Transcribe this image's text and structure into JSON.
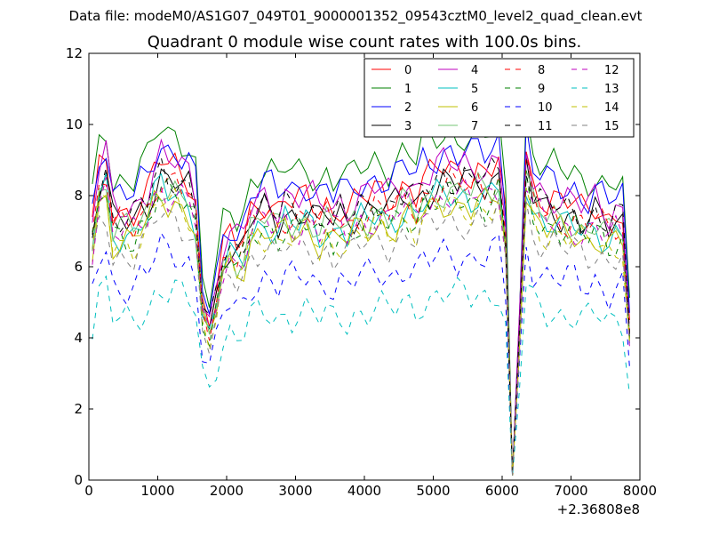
{
  "chart_data": {
    "type": "line",
    "suptitle": "Data file: modeM0/AS1G07_049T01_9000001352_09543cztM0_level2_quad_clean.evt",
    "title": "Quadrant 0 module wise count rates with 100.0s bins.",
    "xlabel": "",
    "ylabel": "",
    "x_offset_label": "+2.36808e8",
    "xlim": [
      0,
      8000
    ],
    "ylim": [
      0,
      12
    ],
    "xticks": [
      "0",
      "1000",
      "2000",
      "3000",
      "4000",
      "5000",
      "6000",
      "7000",
      "8000"
    ],
    "yticks": [
      "0",
      "2",
      "4",
      "6",
      "8",
      "10",
      "12"
    ],
    "grid": false,
    "legend_position": "top-right",
    "x": [
      50,
      150,
      250,
      350,
      450,
      550,
      650,
      750,
      850,
      950,
      1050,
      1150,
      1250,
      1350,
      1450,
      1550,
      1650,
      1750,
      1850,
      1950,
      2050,
      2150,
      2250,
      2350,
      2450,
      2550,
      2650,
      2750,
      2850,
      2950,
      3050,
      3150,
      3250,
      3350,
      3450,
      3550,
      3650,
      3750,
      3850,
      3950,
      4050,
      4150,
      4250,
      4350,
      4450,
      4550,
      4650,
      4750,
      4850,
      4950,
      5050,
      5150,
      5250,
      5350,
      5450,
      5550,
      5650,
      5750,
      5850,
      5950,
      6050,
      6150,
      6250,
      6350,
      6450,
      6550,
      6650,
      6750,
      6850,
      6950,
      7050,
      7150,
      7250,
      7350,
      7450,
      7550,
      7650,
      7750,
      7850
    ],
    "base_profile": [
      1.0,
      1.2,
      1.25,
      1.05,
      1.05,
      1.05,
      1.05,
      1.1,
      1.12,
      1.2,
      1.25,
      1.22,
      1.22,
      1.2,
      1.18,
      1.1,
      0.7,
      0.62,
      0.75,
      0.9,
      0.95,
      0.92,
      0.95,
      1.05,
      1.08,
      1.1,
      1.08,
      1.05,
      1.1,
      1.08,
      1.08,
      1.1,
      1.08,
      1.05,
      1.08,
      1.05,
      1.08,
      1.05,
      1.08,
      1.1,
      1.1,
      1.12,
      1.12,
      1.1,
      1.12,
      1.15,
      1.15,
      1.12,
      1.18,
      1.18,
      1.2,
      1.22,
      1.22,
      1.2,
      1.22,
      1.2,
      1.22,
      1.2,
      1.22,
      1.25,
      1.0,
      0.02,
      0.6,
      1.28,
      1.15,
      1.12,
      1.1,
      1.1,
      1.08,
      1.08,
      1.08,
      1.05,
      1.05,
      1.08,
      1.05,
      1.02,
      1.05,
      1.05,
      0.6
    ],
    "series": [
      {
        "name": "0",
        "color": "#ff0000",
        "dash": "solid",
        "level": 7.2,
        "phase": 0
      },
      {
        "name": "1",
        "color": "#008000",
        "dash": "solid",
        "level": 8.0,
        "phase": 1
      },
      {
        "name": "2",
        "color": "#0000ff",
        "dash": "solid",
        "level": 7.6,
        "phase": 2
      },
      {
        "name": "3",
        "color": "#000000",
        "dash": "solid",
        "level": 6.9,
        "phase": 3
      },
      {
        "name": "4",
        "color": "#bf00bf",
        "dash": "solid",
        "level": 7.3,
        "phase": 4
      },
      {
        "name": "5",
        "color": "#00bfbf",
        "dash": "solid",
        "level": 6.6,
        "phase": 5
      },
      {
        "name": "6",
        "color": "#bfbf00",
        "dash": "solid",
        "level": 6.4,
        "phase": 6
      },
      {
        "name": "7",
        "color": "#74c476",
        "dash": "solid",
        "level": 6.7,
        "phase": 7
      },
      {
        "name": "8",
        "color": "#ff0000",
        "dash": "dashed",
        "level": 6.8,
        "phase": 8
      },
      {
        "name": "9",
        "color": "#008000",
        "dash": "dashed",
        "level": 6.5,
        "phase": 9
      },
      {
        "name": "10",
        "color": "#0000ff",
        "dash": "dashed",
        "level": 5.2,
        "phase": 10
      },
      {
        "name": "11",
        "color": "#000000",
        "dash": "dashed",
        "level": 7.0,
        "phase": 11
      },
      {
        "name": "12",
        "color": "#bf00bf",
        "dash": "dashed",
        "level": 6.6,
        "phase": 12
      },
      {
        "name": "13",
        "color": "#00bfbf",
        "dash": "dashed",
        "level": 4.3,
        "phase": 13
      },
      {
        "name": "14",
        "color": "#bfbf00",
        "dash": "dashed",
        "level": 6.3,
        "phase": 14
      },
      {
        "name": "15",
        "color": "#808080",
        "dash": "dashed",
        "level": 6.0,
        "phase": 15
      }
    ]
  }
}
